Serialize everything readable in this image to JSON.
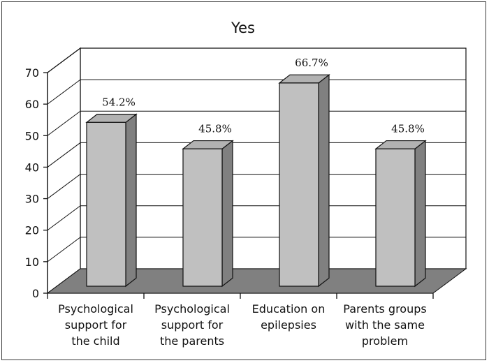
{
  "chart_data": {
    "type": "bar",
    "title": "Yes",
    "xlabel": "",
    "ylabel": "",
    "categories": [
      [
        "Psychological",
        "support for",
        "the child"
      ],
      [
        "Psychological",
        "support for",
        "the parents"
      ],
      [
        "Education on",
        "epilepsies"
      ],
      [
        "Parents groups",
        "with the same",
        "problem"
      ]
    ],
    "values": [
      54.2,
      45.8,
      66.7,
      45.8
    ],
    "data_labels": [
      "54.2%",
      "45.8%",
      "66.7%",
      "45.8%"
    ],
    "ylim": [
      0,
      70
    ],
    "yticks": [
      0,
      10,
      20,
      30,
      40,
      50,
      60,
      70
    ],
    "grid": true,
    "legend": "none",
    "three_d": true,
    "colors": {
      "bar_front": "#c0c0c0",
      "bar_side": "#808080",
      "bar_top": "#b2b2b2",
      "floor": "#808080",
      "walls": "#ffffff",
      "lines": "#111111"
    }
  }
}
